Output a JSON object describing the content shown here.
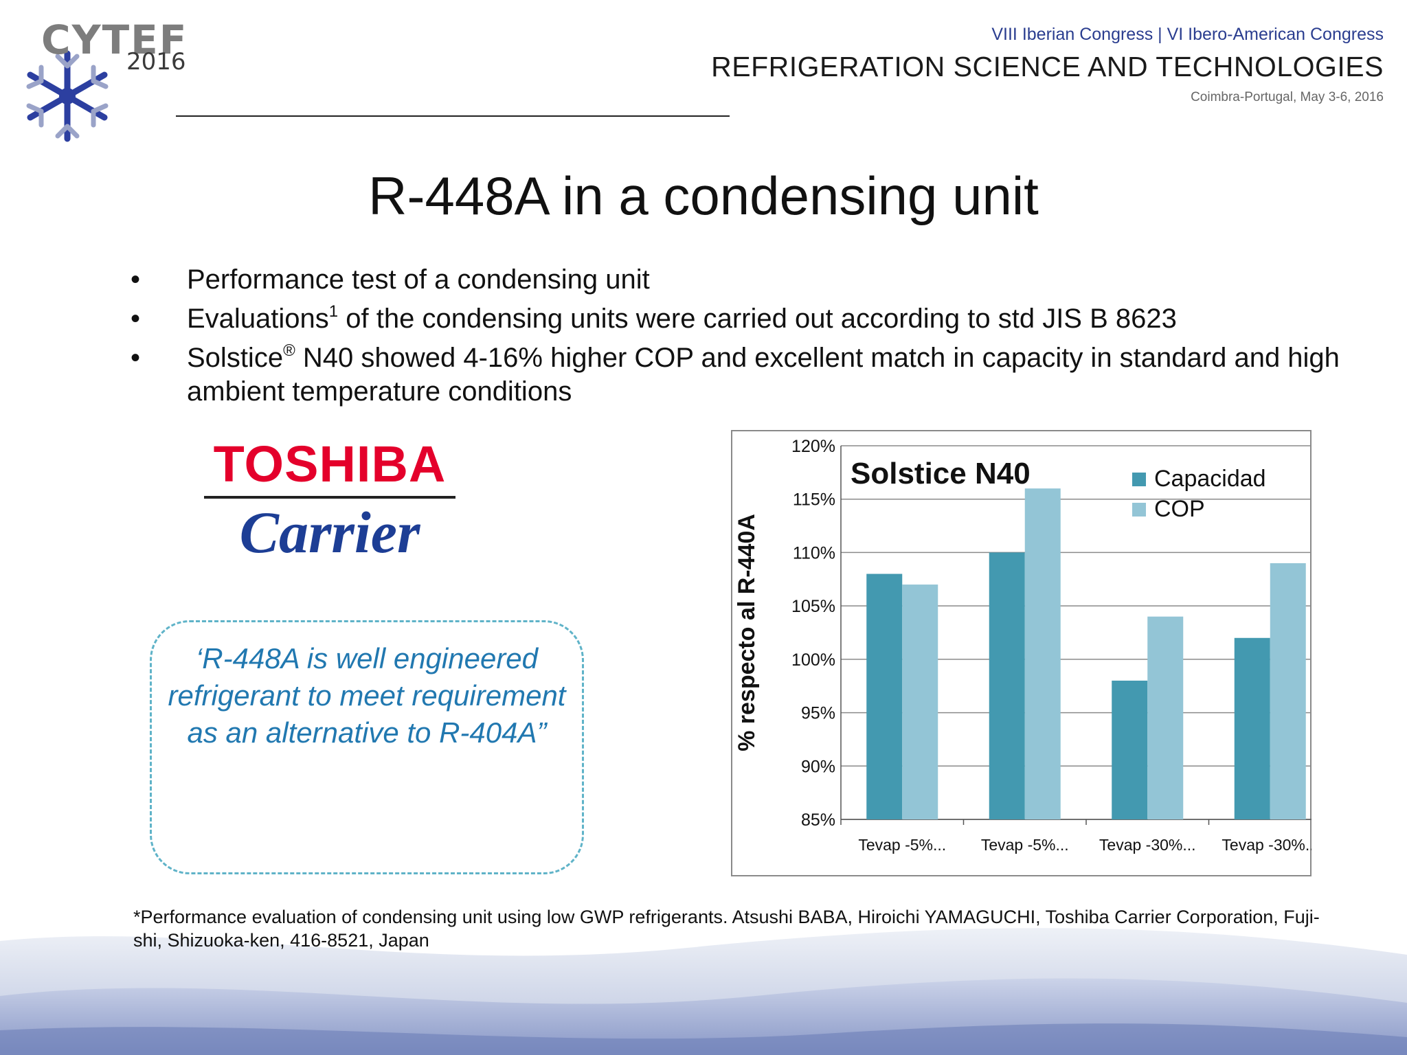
{
  "header": {
    "logo_text": "CYTEF",
    "logo_year": "2016",
    "congress": "VIII Iberian Congress | VI Ibero-American Congress",
    "topic": "REFRIGERATION SCIENCE AND TECHNOLOGIES",
    "place_date": "Coimbra-Portugal, May 3-6, 2016"
  },
  "title": "R-448A in a condensing unit",
  "bullets": [
    {
      "marker": "•",
      "text_a": "Performance test of a condensing unit",
      "sup": "",
      "text_b": ""
    },
    {
      "marker": "•",
      "text_a": "Evaluations",
      "sup": "1",
      "text_b": " of the condensing units were carried out according to std JIS B 8623"
    },
    {
      "marker": "•",
      "text_a": "Solstice",
      "sup": "®",
      "text_b": " N40 showed 4-16% higher COP and excellent match in capacity in standard and high ambient temperature conditions"
    }
  ],
  "logo_brands": {
    "top": "TOSHIBA",
    "bottom": "Carrier"
  },
  "quote": "‘R-448A is well engineered refrigerant to meet requirement as an alternative to R-404A”",
  "footnote": "*Performance evaluation of condensing unit using low GWP refrigerants. Atsushi BABA, Hiroichi YAMAGUCHI, Toshiba Carrier Corporation, Fuji-shi, Shizuoka-ken, 416-8521, Japan",
  "chart_data": {
    "type": "bar",
    "title": "Solstice N40",
    "ylabel": "% respecto al R-440A",
    "xlabel": "",
    "categories": [
      "Tevap -5%...",
      "Tevap -5%...",
      "Tevap -30%...",
      "Tevap -30%..."
    ],
    "series": [
      {
        "name": "Capacidad",
        "values": [
          108,
          110,
          98,
          102
        ],
        "color": "#4399b0"
      },
      {
        "name": "COP",
        "values": [
          107,
          116,
          104,
          109
        ],
        "color": "#93c5d6"
      }
    ],
    "ylim": [
      85,
      120
    ],
    "yticks": [
      85,
      90,
      95,
      100,
      105,
      110,
      115,
      120
    ],
    "ytick_suffix": "%",
    "grid": true,
    "legend_position": "top-right"
  }
}
